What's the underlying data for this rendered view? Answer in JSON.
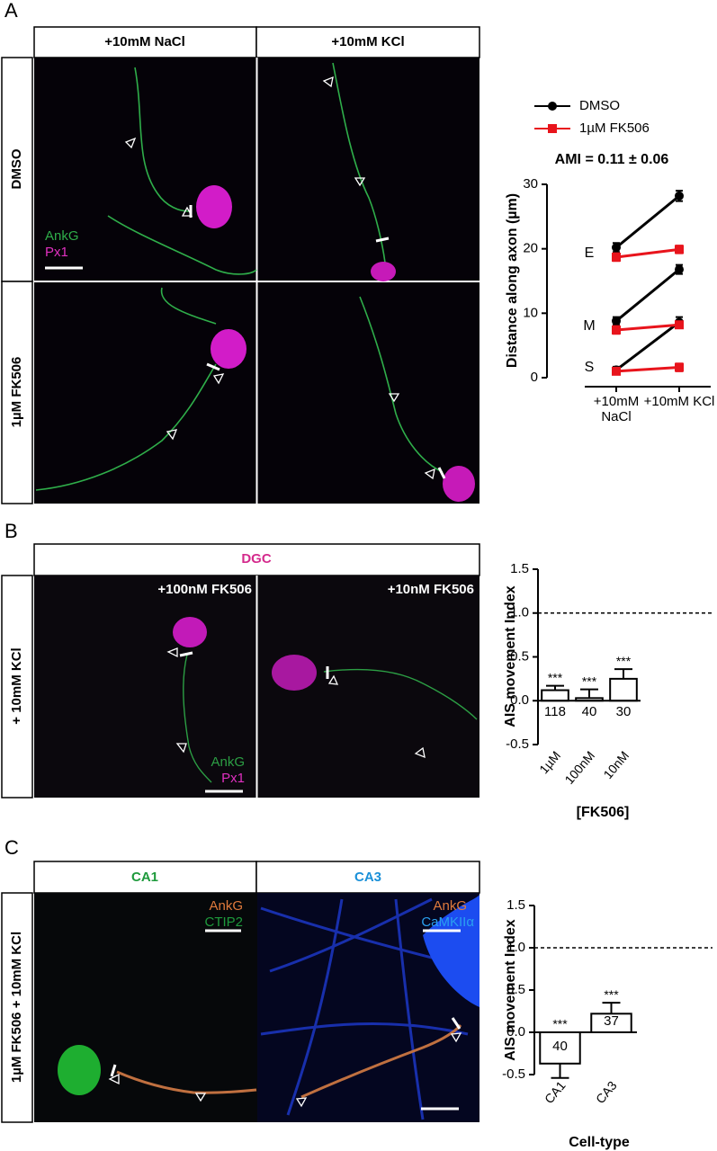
{
  "panels": [
    {
      "letter": "A",
      "columns": [
        "+10mM NaCl",
        "+10mM KCl"
      ],
      "rows": [
        "DMSO",
        "1µM FK506"
      ],
      "stains": [
        "AnkG",
        "Px1"
      ]
    },
    {
      "letter": "B",
      "columns": [
        "DGC"
      ],
      "rows": [
        "+ 10mM KCl"
      ],
      "images": [
        "+100nM FK506",
        "+10nM FK506"
      ],
      "stains": [
        "AnkG",
        "Px1"
      ]
    },
    {
      "letter": "C",
      "columns": [
        "CA1",
        "CA3"
      ],
      "rows": [
        "1µM FK506 + 10mM KCl"
      ],
      "stains": [
        "AnkG",
        "CTIP2",
        "AnkG",
        "CaMKIIα"
      ]
    }
  ],
  "chart_data": [
    {
      "type": "line",
      "title": "AMI = 0.11 ± 0.06",
      "ylabel": "Distance along axon (µm)",
      "categories": [
        "+10mM NaCl",
        "+10mM KCl"
      ],
      "line_labels": [
        "E",
        "M",
        "S"
      ],
      "series": [
        {
          "name": "DMSO",
          "color": "#000000",
          "values": [
            [
              20.2,
              28.2
            ],
            [
              8.8,
              16.8
            ],
            [
              1.2,
              8.6
            ]
          ],
          "errors": [
            [
              0.7,
              0.8
            ],
            [
              0.6,
              0.7
            ],
            [
              0.5,
              0.8
            ]
          ]
        },
        {
          "name": "1µM FK506",
          "color": "#e8141c",
          "values": [
            [
              18.7,
              19.9
            ],
            [
              7.4,
              8.2
            ],
            [
              1.0,
              1.6
            ]
          ],
          "errors": [
            [
              0.6,
              0.6
            ],
            [
              0.6,
              0.5
            ],
            [
              0.4,
              0.6
            ]
          ]
        }
      ],
      "ylim": [
        0,
        30
      ],
      "yticks": [
        0,
        10,
        20,
        30
      ],
      "legend": "upper-left"
    },
    {
      "type": "bar",
      "ylabel": "AIS movement Index",
      "xlabel": "[FK506]",
      "categories": [
        "1µM",
        "100nM",
        "10nM"
      ],
      "values": [
        0.12,
        0.03,
        0.25
      ],
      "errors": [
        0.05,
        0.1,
        0.11
      ],
      "n": [
        118,
        40,
        30
      ],
      "annotations": [
        "***",
        "***",
        "***"
      ],
      "color": "#ffffff",
      "edgecolor": "#000000",
      "ylim": [
        -0.5,
        1.5
      ],
      "yticks": [
        -0.5,
        {
          "value": 0,
          "label": "0.0"
        },
        0.5,
        {
          "value": 1,
          "label": "1.0"
        },
        1.5
      ],
      "reference_line": 1
    },
    {
      "type": "bar",
      "ylabel": "AIS movement Index",
      "xlabel": "Cell-type",
      "categories": [
        "CA1",
        "CA3"
      ],
      "values": [
        -0.37,
        0.22
      ],
      "errors": [
        0.17,
        0.13
      ],
      "n": [
        40,
        37
      ],
      "annotations": [
        "***",
        "***"
      ],
      "color": "#ffffff",
      "edgecolor": "#000000",
      "ylim": [
        -0.5,
        1.5
      ],
      "yticks": [
        -0.5,
        {
          "value": 0,
          "label": "0.0"
        },
        0.5,
        {
          "value": 1,
          "label": "1.0"
        },
        1.5
      ],
      "reference_line": 1
    }
  ]
}
